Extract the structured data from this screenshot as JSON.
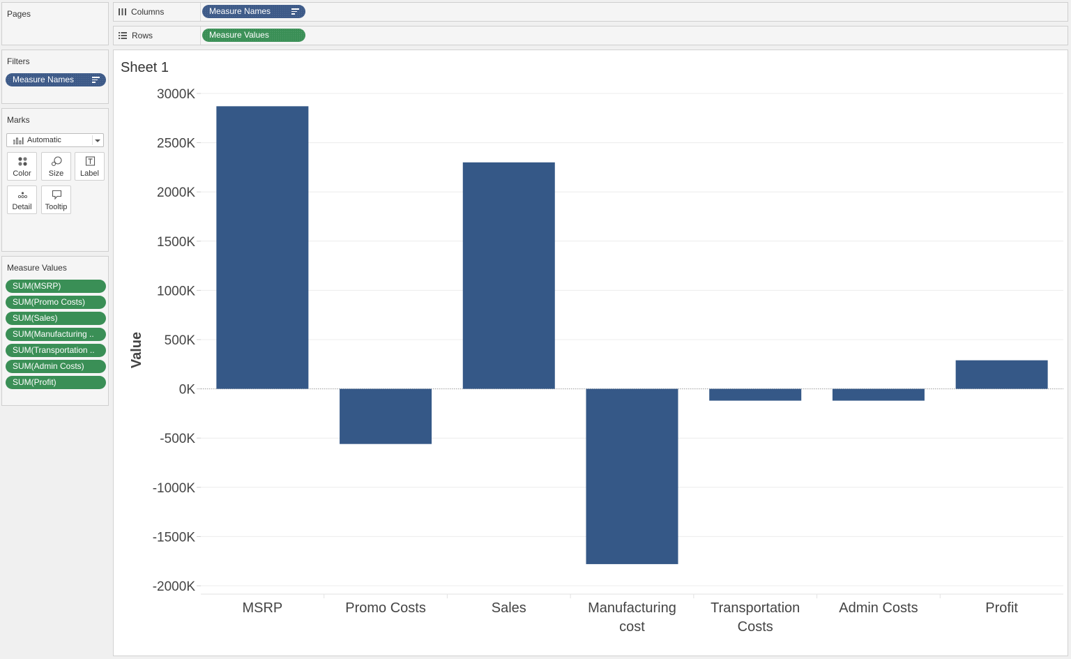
{
  "pages": {
    "title": "Pages"
  },
  "shelves": {
    "columns": {
      "label": "Columns",
      "pill": "Measure Names"
    },
    "rows": {
      "label": "Rows",
      "pill": "Measure Values"
    }
  },
  "filters": {
    "title": "Filters",
    "pill": "Measure Names"
  },
  "marks": {
    "title": "Marks",
    "mark_type": "Automatic",
    "buttons": [
      "Color",
      "Size",
      "Label",
      "Detail",
      "Tooltip"
    ]
  },
  "measure_values": {
    "title": "Measure Values",
    "items": [
      "SUM(MSRP)",
      "SUM(Promo Costs)",
      "SUM(Sales)",
      "SUM(Manufacturing ..",
      "SUM(Transportation ..",
      "SUM(Admin Costs)",
      "SUM(Profit)"
    ]
  },
  "sheet": {
    "title": "Sheet 1"
  },
  "colors": {
    "bar": "#355887",
    "blue_pill": "#3d5a88",
    "green_pill": "#3a8f56"
  },
  "chart_data": {
    "type": "bar",
    "categories": [
      "MSRP",
      "Promo Costs",
      "Sales",
      "Manufacturing cost",
      "Transportation Costs",
      "Admin Costs",
      "Profit"
    ],
    "values": [
      2870,
      -560,
      2300,
      -1780,
      -120,
      -120,
      290
    ],
    "value_unit": "K",
    "ylabel": "Value",
    "ylim": [
      -2000,
      3000
    ],
    "yticks": [
      3000,
      2500,
      2000,
      1500,
      1000,
      500,
      0,
      -500,
      -1000,
      -1500,
      -2000
    ],
    "ytick_labels": [
      "3000K",
      "2500K",
      "2000K",
      "1500K",
      "1000K",
      "500K",
      "0K",
      "-500K",
      "-1000K",
      "-1500K",
      "-2000K"
    ],
    "grid": true
  }
}
